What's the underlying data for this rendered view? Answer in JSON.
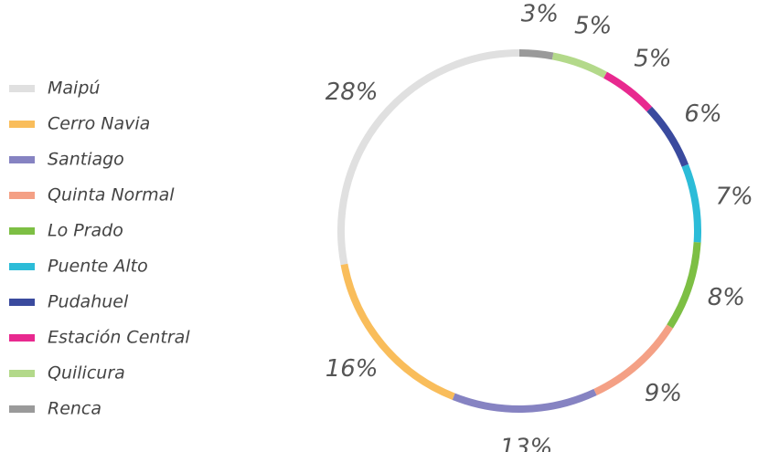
{
  "chart_data": {
    "type": "donut",
    "categories": [
      "Maipú",
      "Cerro Navia",
      "Santiago",
      "Quinta Normal",
      "Lo Prado",
      "Puente Alto",
      "Pudahuel",
      "Estación Central",
      "Quilicura",
      "Renca"
    ],
    "values": [
      28,
      16,
      13,
      9,
      8,
      7,
      6,
      5,
      5,
      3
    ],
    "value_labels": [
      "28%",
      "16%",
      "13%",
      "9%",
      "8%",
      "7%",
      "6%",
      "5%",
      "5%",
      "3%"
    ],
    "colors": [
      "#e0e0e0",
      "#f9bd5b",
      "#8683c2",
      "#f4a085",
      "#7dbf44",
      "#2cbcd8",
      "#3a4a9e",
      "#e8298f",
      "#b3d98a",
      "#9a9a9a"
    ],
    "legend": "left"
  }
}
